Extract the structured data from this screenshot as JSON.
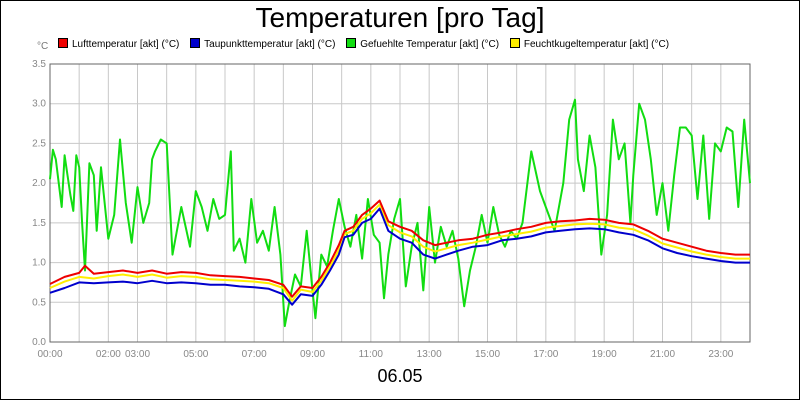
{
  "chart_data": {
    "type": "line",
    "title": "Temperaturen [pro Tag]",
    "y_unit": "°C",
    "date_label": "06.05",
    "ylim": [
      0,
      3.5
    ],
    "yticks": [
      "0.0",
      "0.5",
      "1.0",
      "1.5",
      "2.0",
      "2.5",
      "3.0",
      "3.5"
    ],
    "xlim_hours": [
      0,
      24
    ],
    "xtick_labels": [
      {
        "label": "00:00",
        "hour": 0
      },
      {
        "label": "02:00",
        "hour": 2
      },
      {
        "label": "03:00",
        "hour": 3
      },
      {
        "label": "05:00",
        "hour": 5
      },
      {
        "label": "07:00",
        "hour": 7
      },
      {
        "label": "09:00",
        "hour": 9
      },
      {
        "label": "11:00",
        "hour": 11
      },
      {
        "label": "13:00",
        "hour": 13
      },
      {
        "label": "15:00",
        "hour": 15
      },
      {
        "label": "17:00",
        "hour": 17
      },
      {
        "label": "19:00",
        "hour": 19
      },
      {
        "label": "21:00",
        "hour": 21
      },
      {
        "label": "23:00",
        "hour": 23
      }
    ],
    "grid": true,
    "legend_position": "top",
    "series": [
      {
        "name": "Lufttemperatur [akt] (°C)",
        "color": "#ee0000",
        "points": [
          [
            0.0,
            0.73
          ],
          [
            0.5,
            0.82
          ],
          [
            1.0,
            0.87
          ],
          [
            1.2,
            0.96
          ],
          [
            1.5,
            0.86
          ],
          [
            2.0,
            0.88
          ],
          [
            2.5,
            0.9
          ],
          [
            3.0,
            0.87
          ],
          [
            3.5,
            0.9
          ],
          [
            4.0,
            0.86
          ],
          [
            4.5,
            0.88
          ],
          [
            5.0,
            0.87
          ],
          [
            5.5,
            0.84
          ],
          [
            6.0,
            0.83
          ],
          [
            6.5,
            0.82
          ],
          [
            7.0,
            0.8
          ],
          [
            7.5,
            0.78
          ],
          [
            8.0,
            0.72
          ],
          [
            8.3,
            0.57
          ],
          [
            8.6,
            0.7
          ],
          [
            9.0,
            0.68
          ],
          [
            9.3,
            0.82
          ],
          [
            9.6,
            1.0
          ],
          [
            9.9,
            1.22
          ],
          [
            10.1,
            1.4
          ],
          [
            10.4,
            1.45
          ],
          [
            10.7,
            1.6
          ],
          [
            11.0,
            1.68
          ],
          [
            11.3,
            1.78
          ],
          [
            11.6,
            1.52
          ],
          [
            12.0,
            1.45
          ],
          [
            12.4,
            1.4
          ],
          [
            12.8,
            1.28
          ],
          [
            13.2,
            1.22
          ],
          [
            13.6,
            1.25
          ],
          [
            14.0,
            1.28
          ],
          [
            14.5,
            1.3
          ],
          [
            15.0,
            1.35
          ],
          [
            15.5,
            1.38
          ],
          [
            16.0,
            1.42
          ],
          [
            16.5,
            1.45
          ],
          [
            17.0,
            1.5
          ],
          [
            17.5,
            1.52
          ],
          [
            18.0,
            1.53
          ],
          [
            18.5,
            1.55
          ],
          [
            19.0,
            1.54
          ],
          [
            19.5,
            1.5
          ],
          [
            20.0,
            1.48
          ],
          [
            20.5,
            1.4
          ],
          [
            21.0,
            1.3
          ],
          [
            21.5,
            1.25
          ],
          [
            22.0,
            1.2
          ],
          [
            22.5,
            1.15
          ],
          [
            23.0,
            1.12
          ],
          [
            23.5,
            1.1
          ],
          [
            24.0,
            1.1
          ]
        ]
      },
      {
        "name": "Taupunkttemperatur [akt] (°C)",
        "color": "#0000cc",
        "points": [
          [
            0.0,
            0.62
          ],
          [
            0.5,
            0.68
          ],
          [
            1.0,
            0.75
          ],
          [
            1.5,
            0.74
          ],
          [
            2.0,
            0.75
          ],
          [
            2.5,
            0.76
          ],
          [
            3.0,
            0.74
          ],
          [
            3.5,
            0.77
          ],
          [
            4.0,
            0.74
          ],
          [
            4.5,
            0.75
          ],
          [
            5.0,
            0.74
          ],
          [
            5.5,
            0.72
          ],
          [
            6.0,
            0.72
          ],
          [
            6.5,
            0.7
          ],
          [
            7.0,
            0.69
          ],
          [
            7.5,
            0.67
          ],
          [
            8.0,
            0.6
          ],
          [
            8.3,
            0.47
          ],
          [
            8.6,
            0.6
          ],
          [
            9.0,
            0.58
          ],
          [
            9.3,
            0.72
          ],
          [
            9.6,
            0.9
          ],
          [
            9.9,
            1.1
          ],
          [
            10.1,
            1.32
          ],
          [
            10.4,
            1.35
          ],
          [
            10.7,
            1.5
          ],
          [
            11.0,
            1.55
          ],
          [
            11.3,
            1.68
          ],
          [
            11.6,
            1.4
          ],
          [
            12.0,
            1.3
          ],
          [
            12.4,
            1.25
          ],
          [
            12.8,
            1.1
          ],
          [
            13.2,
            1.05
          ],
          [
            13.6,
            1.1
          ],
          [
            14.0,
            1.15
          ],
          [
            14.5,
            1.2
          ],
          [
            15.0,
            1.22
          ],
          [
            15.5,
            1.28
          ],
          [
            16.0,
            1.3
          ],
          [
            16.5,
            1.33
          ],
          [
            17.0,
            1.38
          ],
          [
            17.5,
            1.4
          ],
          [
            18.0,
            1.42
          ],
          [
            18.5,
            1.43
          ],
          [
            19.0,
            1.42
          ],
          [
            19.5,
            1.38
          ],
          [
            20.0,
            1.35
          ],
          [
            20.5,
            1.28
          ],
          [
            21.0,
            1.18
          ],
          [
            21.5,
            1.12
          ],
          [
            22.0,
            1.08
          ],
          [
            22.5,
            1.05
          ],
          [
            23.0,
            1.02
          ],
          [
            23.5,
            1.0
          ],
          [
            24.0,
            1.0
          ]
        ]
      },
      {
        "name": "Gefuehlte Temperatur [akt] (°C)",
        "color": "#11dd11",
        "points": [
          [
            0.0,
            2.05
          ],
          [
            0.1,
            2.42
          ],
          [
            0.2,
            2.3
          ],
          [
            0.4,
            1.7
          ],
          [
            0.5,
            2.35
          ],
          [
            0.7,
            1.85
          ],
          [
            0.8,
            1.65
          ],
          [
            0.9,
            2.35
          ],
          [
            1.0,
            2.2
          ],
          [
            1.1,
            1.5
          ],
          [
            1.2,
            0.9
          ],
          [
            1.35,
            2.25
          ],
          [
            1.5,
            2.1
          ],
          [
            1.6,
            1.4
          ],
          [
            1.75,
            2.2
          ],
          [
            2.0,
            1.3
          ],
          [
            2.2,
            1.6
          ],
          [
            2.4,
            2.55
          ],
          [
            2.6,
            1.75
          ],
          [
            2.8,
            1.25
          ],
          [
            3.0,
            1.95
          ],
          [
            3.2,
            1.5
          ],
          [
            3.4,
            1.75
          ],
          [
            3.5,
            2.3
          ],
          [
            3.6,
            2.4
          ],
          [
            3.8,
            2.55
          ],
          [
            4.0,
            2.5
          ],
          [
            4.2,
            1.1
          ],
          [
            4.5,
            1.7
          ],
          [
            4.8,
            1.2
          ],
          [
            5.0,
            1.9
          ],
          [
            5.2,
            1.7
          ],
          [
            5.4,
            1.4
          ],
          [
            5.6,
            1.8
          ],
          [
            5.8,
            1.55
          ],
          [
            6.0,
            1.6
          ],
          [
            6.2,
            2.4
          ],
          [
            6.3,
            1.15
          ],
          [
            6.5,
            1.3
          ],
          [
            6.7,
            1.0
          ],
          [
            6.9,
            1.8
          ],
          [
            7.1,
            1.25
          ],
          [
            7.3,
            1.4
          ],
          [
            7.5,
            1.15
          ],
          [
            7.7,
            1.7
          ],
          [
            7.9,
            1.1
          ],
          [
            8.05,
            0.2
          ],
          [
            8.2,
            0.5
          ],
          [
            8.4,
            0.85
          ],
          [
            8.6,
            0.7
          ],
          [
            8.8,
            1.4
          ],
          [
            9.0,
            0.65
          ],
          [
            9.1,
            0.3
          ],
          [
            9.3,
            1.1
          ],
          [
            9.5,
            0.95
          ],
          [
            9.7,
            1.4
          ],
          [
            9.9,
            1.8
          ],
          [
            10.1,
            1.45
          ],
          [
            10.3,
            1.2
          ],
          [
            10.5,
            1.6
          ],
          [
            10.7,
            1.05
          ],
          [
            10.9,
            1.8
          ],
          [
            11.1,
            1.35
          ],
          [
            11.3,
            1.25
          ],
          [
            11.45,
            0.55
          ],
          [
            11.6,
            1.1
          ],
          [
            11.8,
            1.55
          ],
          [
            12.0,
            1.8
          ],
          [
            12.2,
            0.7
          ],
          [
            12.4,
            1.2
          ],
          [
            12.6,
            1.5
          ],
          [
            12.8,
            0.65
          ],
          [
            13.0,
            1.7
          ],
          [
            13.2,
            1.0
          ],
          [
            13.4,
            1.45
          ],
          [
            13.6,
            1.2
          ],
          [
            13.8,
            1.4
          ],
          [
            14.0,
            1.05
          ],
          [
            14.2,
            0.45
          ],
          [
            14.4,
            0.9
          ],
          [
            14.6,
            1.2
          ],
          [
            14.8,
            1.6
          ],
          [
            15.0,
            1.25
          ],
          [
            15.2,
            1.7
          ],
          [
            15.4,
            1.35
          ],
          [
            15.6,
            1.2
          ],
          [
            15.8,
            1.4
          ],
          [
            16.0,
            1.3
          ],
          [
            16.2,
            1.5
          ],
          [
            16.5,
            2.4
          ],
          [
            16.8,
            1.9
          ],
          [
            17.0,
            1.7
          ],
          [
            17.3,
            1.4
          ],
          [
            17.6,
            2.0
          ],
          [
            17.8,
            2.8
          ],
          [
            18.0,
            3.05
          ],
          [
            18.1,
            2.3
          ],
          [
            18.3,
            1.9
          ],
          [
            18.5,
            2.6
          ],
          [
            18.7,
            2.2
          ],
          [
            18.9,
            1.1
          ],
          [
            19.1,
            1.6
          ],
          [
            19.3,
            2.8
          ],
          [
            19.5,
            2.3
          ],
          [
            19.7,
            2.5
          ],
          [
            19.9,
            1.5
          ],
          [
            20.0,
            2.1
          ],
          [
            20.2,
            3.0
          ],
          [
            20.4,
            2.8
          ],
          [
            20.6,
            2.3
          ],
          [
            20.8,
            1.6
          ],
          [
            21.0,
            2.0
          ],
          [
            21.2,
            1.4
          ],
          [
            21.4,
            2.1
          ],
          [
            21.6,
            2.7
          ],
          [
            21.8,
            2.7
          ],
          [
            22.0,
            2.6
          ],
          [
            22.2,
            1.8
          ],
          [
            22.4,
            2.6
          ],
          [
            22.6,
            1.55
          ],
          [
            22.8,
            2.5
          ],
          [
            23.0,
            2.4
          ],
          [
            23.2,
            2.7
          ],
          [
            23.4,
            2.65
          ],
          [
            23.6,
            1.7
          ],
          [
            23.8,
            2.8
          ],
          [
            24.0,
            2.0
          ]
        ]
      },
      {
        "name": "Feuchtkugeltemperatur [akt] (°C)",
        "color": "#ffee00",
        "points": [
          [
            0.0,
            0.68
          ],
          [
            0.5,
            0.76
          ],
          [
            1.0,
            0.82
          ],
          [
            1.5,
            0.8
          ],
          [
            2.0,
            0.83
          ],
          [
            2.5,
            0.85
          ],
          [
            3.0,
            0.82
          ],
          [
            3.5,
            0.85
          ],
          [
            4.0,
            0.81
          ],
          [
            4.5,
            0.83
          ],
          [
            5.0,
            0.82
          ],
          [
            5.5,
            0.79
          ],
          [
            6.0,
            0.78
          ],
          [
            6.5,
            0.77
          ],
          [
            7.0,
            0.76
          ],
          [
            7.5,
            0.74
          ],
          [
            8.0,
            0.68
          ],
          [
            8.3,
            0.52
          ],
          [
            8.6,
            0.66
          ],
          [
            9.0,
            0.63
          ],
          [
            9.3,
            0.77
          ],
          [
            9.6,
            0.95
          ],
          [
            9.9,
            1.16
          ],
          [
            10.1,
            1.36
          ],
          [
            10.4,
            1.4
          ],
          [
            10.7,
            1.55
          ],
          [
            11.0,
            1.62
          ],
          [
            11.3,
            1.73
          ],
          [
            11.6,
            1.47
          ],
          [
            12.0,
            1.38
          ],
          [
            12.4,
            1.33
          ],
          [
            12.8,
            1.2
          ],
          [
            13.2,
            1.14
          ],
          [
            13.6,
            1.18
          ],
          [
            14.0,
            1.22
          ],
          [
            14.5,
            1.25
          ],
          [
            15.0,
            1.29
          ],
          [
            15.5,
            1.33
          ],
          [
            16.0,
            1.36
          ],
          [
            16.5,
            1.39
          ],
          [
            17.0,
            1.44
          ],
          [
            17.5,
            1.46
          ],
          [
            18.0,
            1.48
          ],
          [
            18.5,
            1.49
          ],
          [
            19.0,
            1.48
          ],
          [
            19.5,
            1.44
          ],
          [
            20.0,
            1.42
          ],
          [
            20.5,
            1.34
          ],
          [
            21.0,
            1.24
          ],
          [
            21.5,
            1.19
          ],
          [
            22.0,
            1.14
          ],
          [
            22.5,
            1.1
          ],
          [
            23.0,
            1.07
          ],
          [
            23.5,
            1.05
          ],
          [
            24.0,
            1.05
          ]
        ]
      }
    ]
  }
}
